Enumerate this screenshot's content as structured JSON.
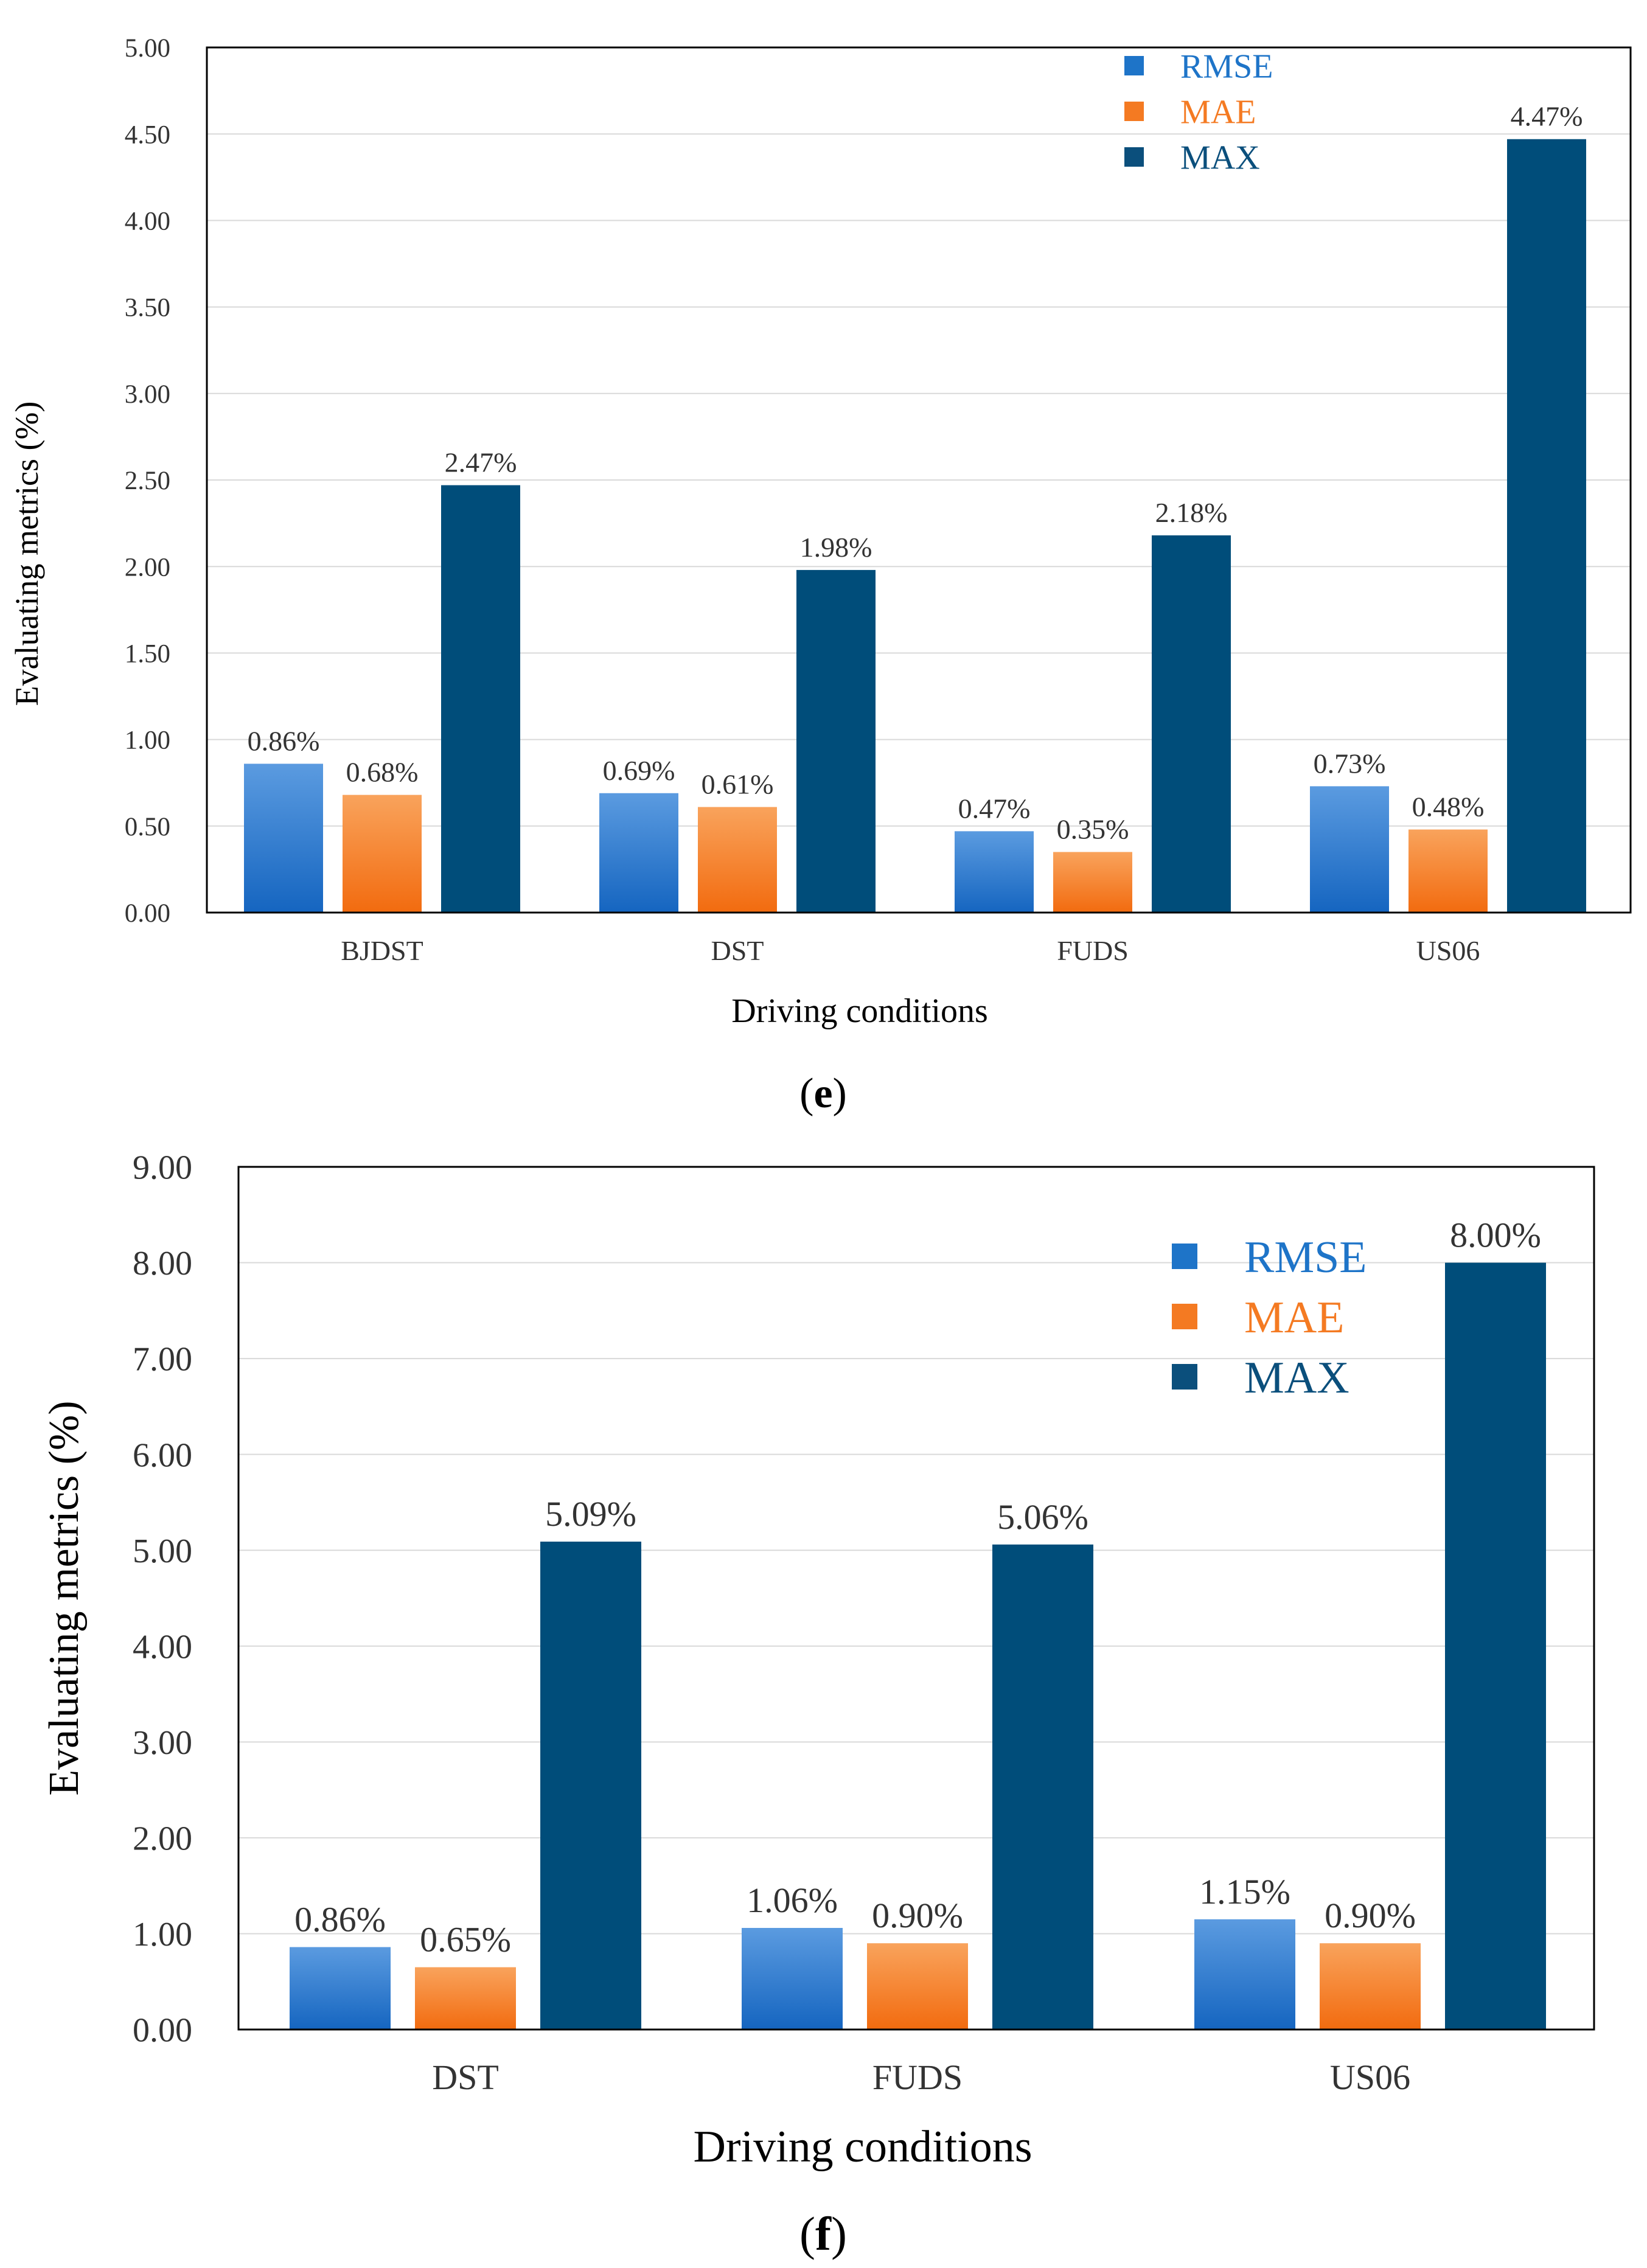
{
  "chart_data": [
    {
      "type": "bar",
      "panel_label": "e",
      "categories": [
        "BJDST",
        "DST",
        "FUDS",
        "US06"
      ],
      "series": [
        {
          "name": "RMSE",
          "values": [
            0.86,
            0.69,
            0.47,
            0.73
          ],
          "labels": [
            "0.86%",
            "0.69%",
            "0.47%",
            "0.73%"
          ]
        },
        {
          "name": "MAE",
          "values": [
            0.68,
            0.61,
            0.35,
            0.48
          ],
          "labels": [
            "0.68%",
            "0.61%",
            "0.35%",
            "0.48%"
          ]
        },
        {
          "name": "MAX",
          "values": [
            2.47,
            1.98,
            2.18,
            4.47
          ],
          "labels": [
            "2.47%",
            "1.98%",
            "2.18%",
            "4.47%"
          ]
        }
      ],
      "xlabel": "Driving conditions",
      "ylabel": "Evaluating metrics (%)",
      "ylim": [
        0,
        5
      ],
      "yticks": [
        "0.00",
        "0.50",
        "1.00",
        "1.50",
        "2.00",
        "2.50",
        "3.00",
        "3.50",
        "4.00",
        "4.50",
        "5.00"
      ],
      "grid": true,
      "legend_position": "top-right"
    },
    {
      "type": "bar",
      "panel_label": "f",
      "categories": [
        "DST",
        "FUDS",
        "US06"
      ],
      "series": [
        {
          "name": "RMSE",
          "values": [
            0.86,
            1.06,
            1.15
          ],
          "labels": [
            "0.86%",
            "1.06%",
            "1.15%"
          ]
        },
        {
          "name": "MAE",
          "values": [
            0.65,
            0.9,
            0.9
          ],
          "labels": [
            "0.65%",
            "0.90%",
            "0.90%"
          ]
        },
        {
          "name": "MAX",
          "values": [
            5.09,
            5.06,
            8.0
          ],
          "labels": [
            "5.09%",
            "5.06%",
            "8.00%"
          ]
        }
      ],
      "xlabel": "Driving conditions",
      "ylabel": "Evaluating metrics (%)",
      "ylim": [
        0,
        9
      ],
      "yticks": [
        "0.00",
        "1.00",
        "2.00",
        "3.00",
        "4.00",
        "5.00",
        "6.00",
        "7.00",
        "8.00",
        "9.00"
      ],
      "grid": true,
      "legend_position": "top-right"
    }
  ],
  "colors": {
    "RMSE": "#1565C0",
    "RMSE_top": "#5B9BE0",
    "MAE": "#F26B0F",
    "MAE_top": "#F9A35C",
    "MAX": "#004D7A",
    "legend_RMSE": "#1E74C8",
    "legend_MAE": "#F47A22",
    "legend_MAX": "#0B4F7C",
    "grid": "#D9D9D9",
    "axis": "#000000",
    "text": "#333333"
  }
}
